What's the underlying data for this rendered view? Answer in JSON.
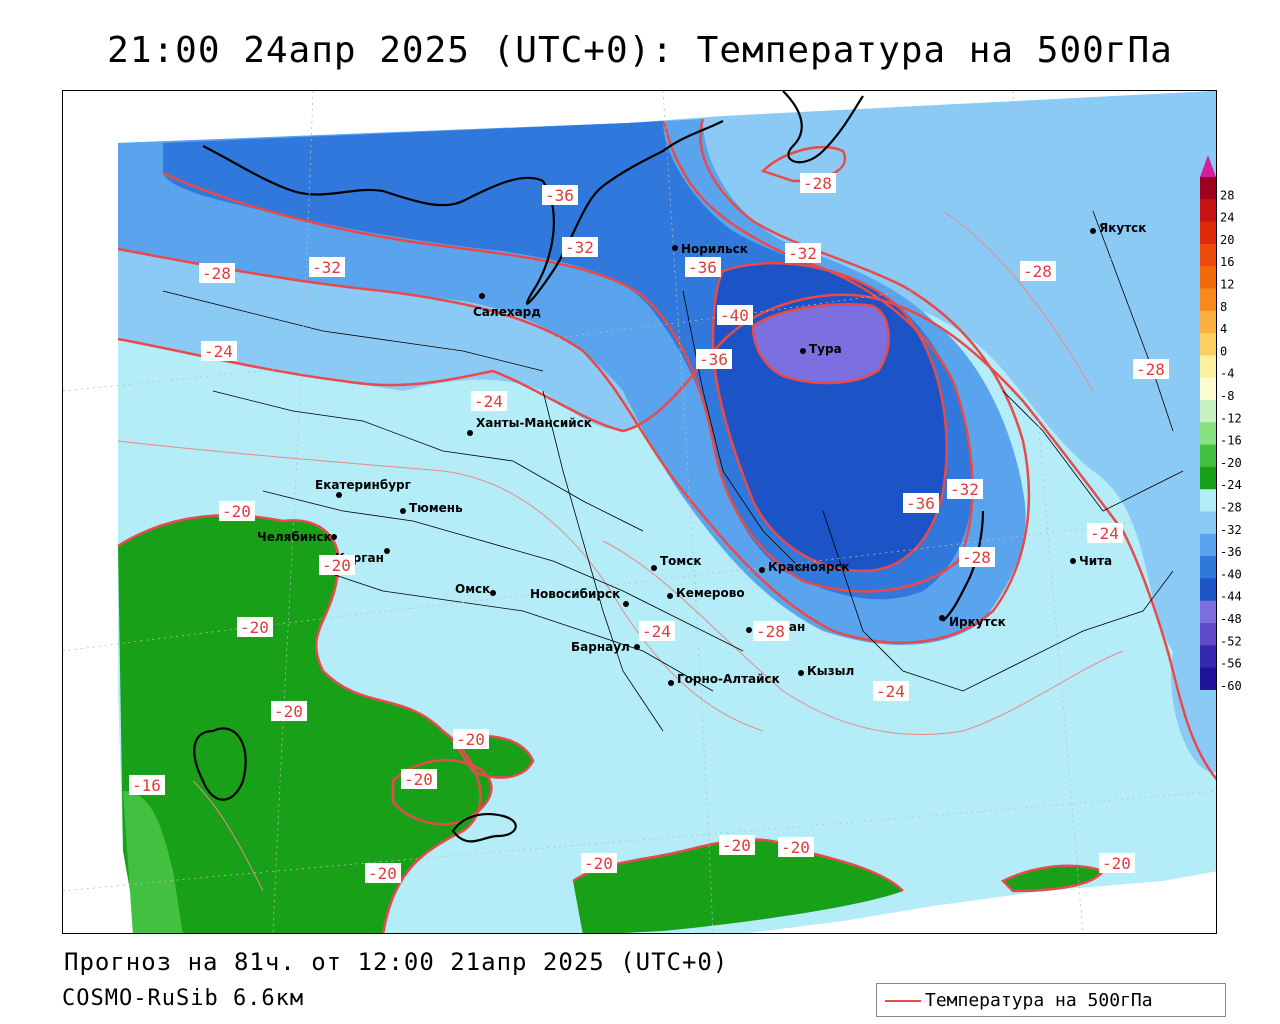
{
  "title": "21:00 24апр 2025 (UTC+0): Температура на 500гПа",
  "forecast_info": "Прогноз на 81ч. от 12:00 21апр 2025 (UTC+0)",
  "model": "COSMO-RuSib 6.6км",
  "legend": {
    "label": "Температура на 500гПа",
    "color": "#e84a4a"
  },
  "cities": [
    {
      "name": "Норильск"
    },
    {
      "name": "Якутск"
    },
    {
      "name": "Салехард"
    },
    {
      "name": "Тура"
    },
    {
      "name": "Ханты-Мансийск"
    },
    {
      "name": "Екатеринбург"
    },
    {
      "name": "Тюмень"
    },
    {
      "name": "Челябинск"
    },
    {
      "name": "Курган"
    },
    {
      "name": "Омск"
    },
    {
      "name": "Новосибирск"
    },
    {
      "name": "Томск"
    },
    {
      "name": "Кемерово"
    },
    {
      "name": "Красноярск"
    },
    {
      "name": "Барнаул"
    },
    {
      "name": "Абакан"
    },
    {
      "name": "Горно-Алтайск"
    },
    {
      "name": "Кызыл"
    },
    {
      "name": "Иркутск"
    },
    {
      "name": "Чита"
    }
  ],
  "isotherm_labels": [
    {
      "text": "-36"
    },
    {
      "text": "-32"
    },
    {
      "text": "-28"
    },
    {
      "text": "-32"
    },
    {
      "text": "-36"
    },
    {
      "text": "-32"
    },
    {
      "text": "-28"
    },
    {
      "text": "-28"
    },
    {
      "text": "-40"
    },
    {
      "text": "-36"
    },
    {
      "text": "-28"
    },
    {
      "text": "-24"
    },
    {
      "text": "-24"
    },
    {
      "text": "-24"
    },
    {
      "text": "-36"
    },
    {
      "text": "-32"
    },
    {
      "text": "-28"
    },
    {
      "text": "-20"
    },
    {
      "text": "-20"
    },
    {
      "text": "-24"
    },
    {
      "text": "-28"
    },
    {
      "text": "-24"
    },
    {
      "text": "-20"
    },
    {
      "text": "-20"
    },
    {
      "text": "-20"
    },
    {
      "text": "-16"
    },
    {
      "text": "-20"
    },
    {
      "text": "-20"
    },
    {
      "text": "-20"
    },
    {
      "text": "-20"
    },
    {
      "text": "-20"
    },
    {
      "text": "-20"
    }
  ],
  "colorbar": {
    "levels": [
      "28",
      "24",
      "20",
      "16",
      "12",
      "8",
      "4",
      "0",
      "-4",
      "-8",
      "-12",
      "-16",
      "-20",
      "-24",
      "-28",
      "-32",
      "-36",
      "-40",
      "-44",
      "-48",
      "-52",
      "-56",
      "-60"
    ],
    "colors": [
      "#a00020",
      "#c81414",
      "#e02a0a",
      "#ee4a0a",
      "#f46a0a",
      "#f78a1a",
      "#f9b040",
      "#fbd060",
      "#fdf0a0",
      "#fdfbd0",
      "#c8f0c0",
      "#88e080",
      "#44c040",
      "#18a018",
      "#b4ecf8",
      "#8ccaf6",
      "#5aa4ee",
      "#3078dc",
      "#1c54c8",
      "#7c70e0",
      "#6048c8",
      "#3828b0",
      "#20109c",
      "#b01c9c"
    ]
  }
}
